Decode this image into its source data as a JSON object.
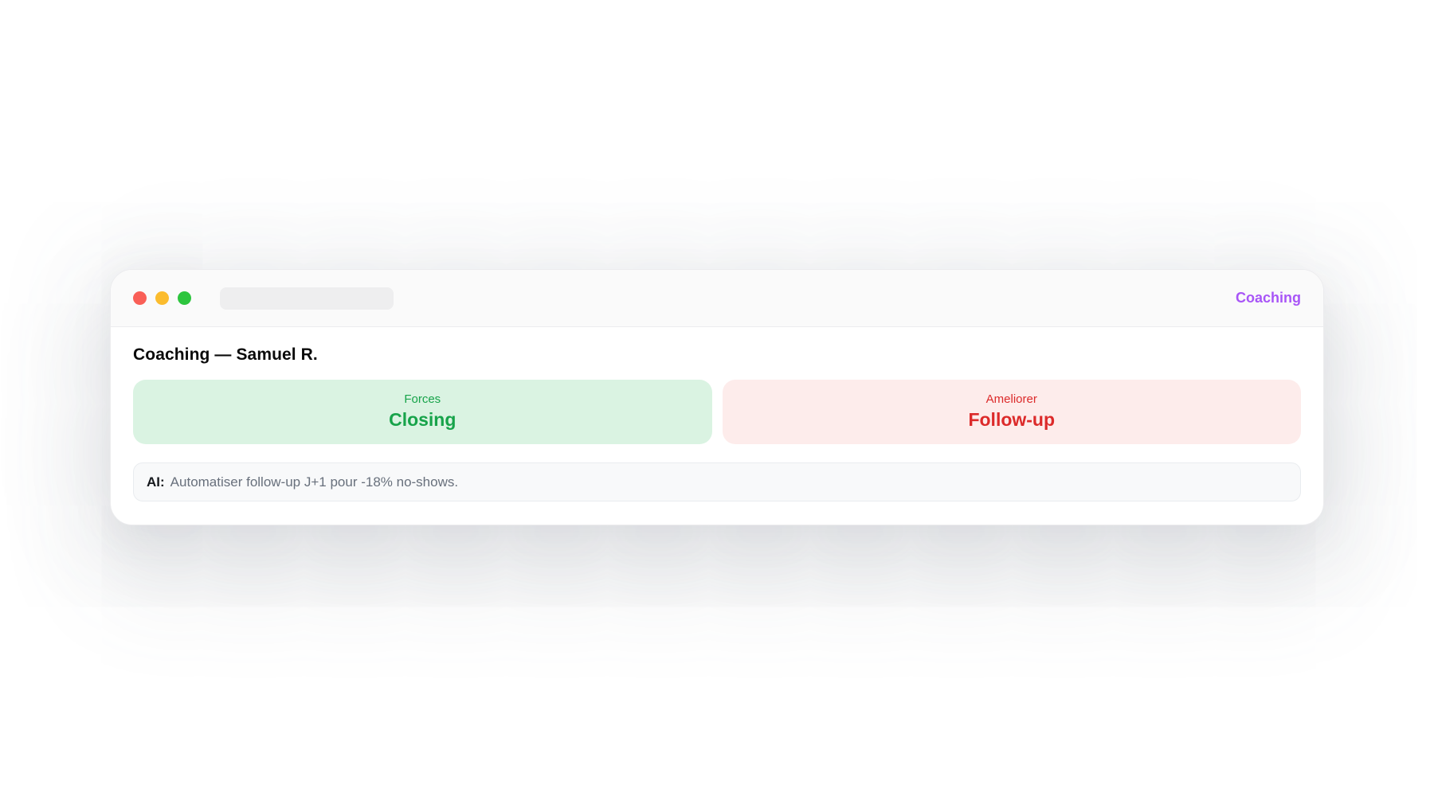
{
  "window": {
    "titlebar": {
      "traffic_lights": [
        {
          "name": "close",
          "color": "#f95f57"
        },
        {
          "name": "minimize",
          "color": "#fbbc2e"
        },
        {
          "name": "zoom",
          "color": "#2dc53e"
        }
      ],
      "address_value": "",
      "brand": {
        "label": "Coaching",
        "color": "#a855f7"
      }
    },
    "main": {
      "title": "Coaching — Samuel R.",
      "stat_cards": [
        {
          "label": "Forces",
          "value": "Closing",
          "text_color": "#17a34a",
          "bg_color": "#daf3e2"
        },
        {
          "label": "Ameliorer",
          "value": "Follow-up",
          "text_color": "#dc2a2a",
          "bg_color": "#fdeceb"
        }
      ],
      "ai_note": {
        "prefix": "AI:",
        "text": "Automatiser follow-up J+1 pour -18% no-shows."
      }
    }
  }
}
